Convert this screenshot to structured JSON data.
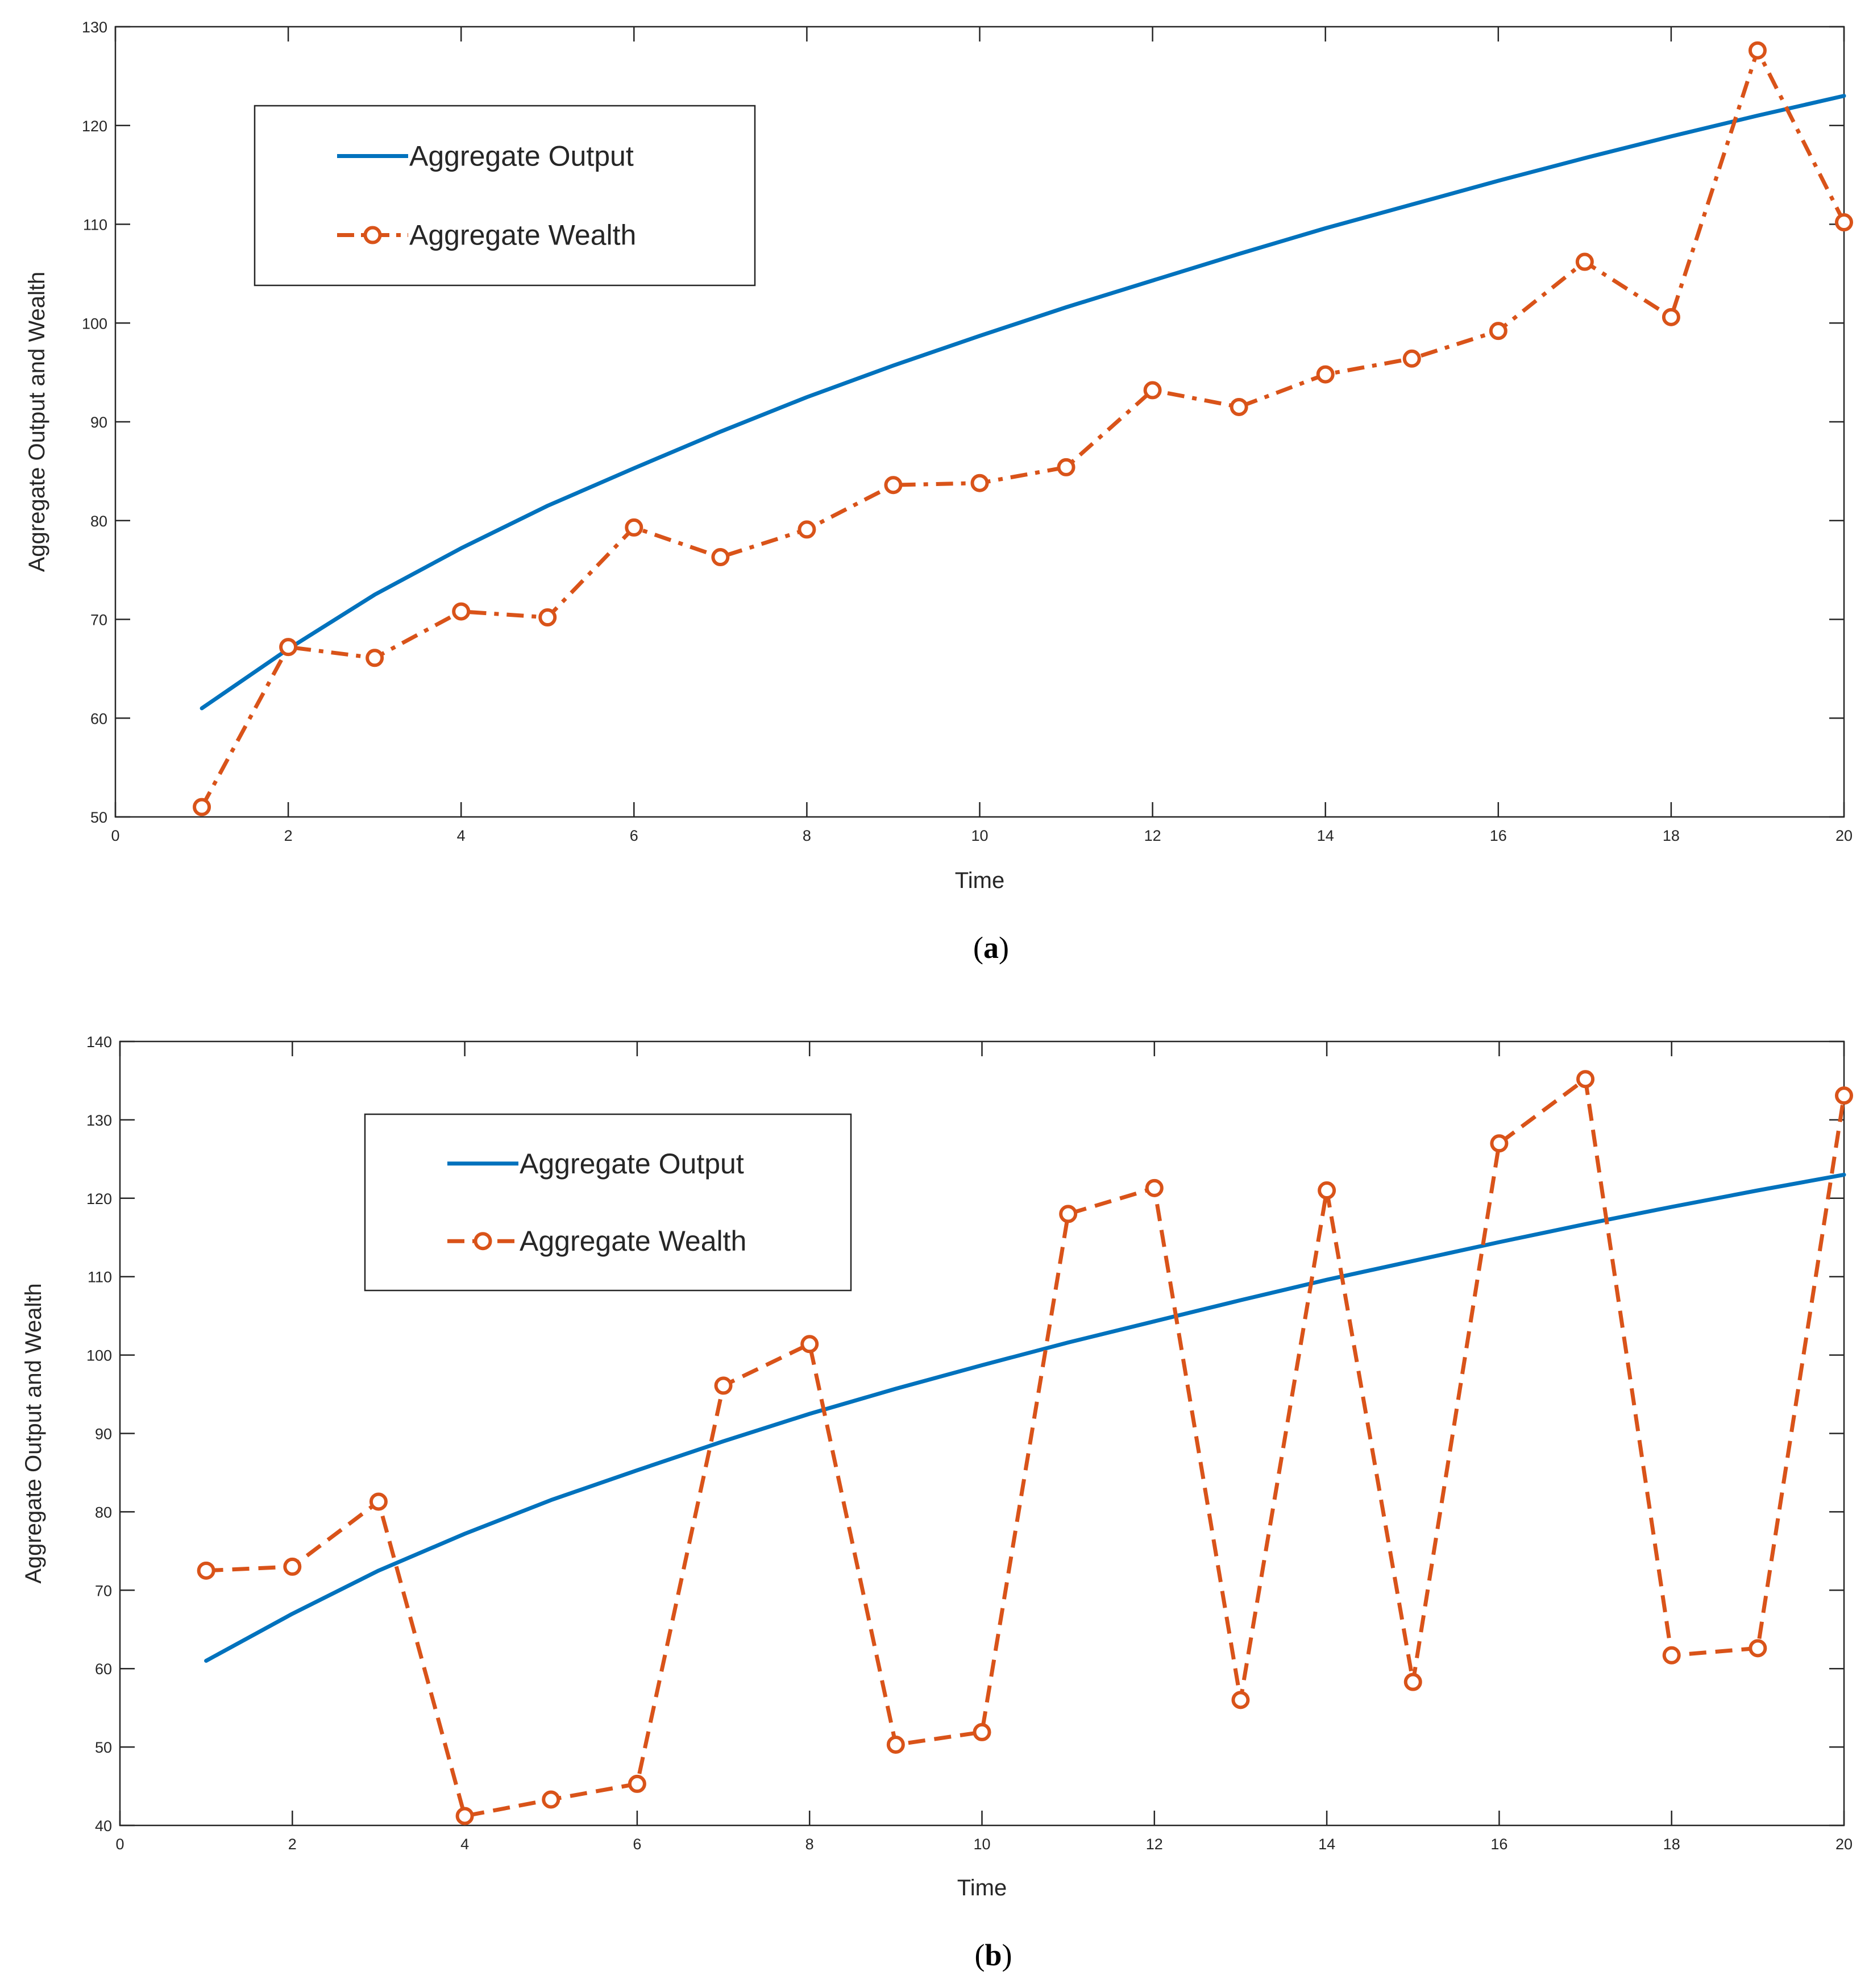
{
  "colors": {
    "output": "#0072BD",
    "wealth": "#D95319",
    "axis": "#262626",
    "background": "#ffffff"
  },
  "chart_data": [
    {
      "id": "a",
      "type": "line",
      "caption": {
        "open": "(",
        "letter": "a",
        "close": ")"
      },
      "xlabel": "Time",
      "ylabel": "Aggregate Output and Wealth",
      "xlim": [
        0,
        20
      ],
      "ylim": [
        50,
        130
      ],
      "xticks": [
        "0",
        "2",
        "4",
        "6",
        "8",
        "10",
        "12",
        "14",
        "16",
        "18",
        "20"
      ],
      "yticks": [
        "50",
        "60",
        "70",
        "80",
        "90",
        "100",
        "110",
        "120",
        "130"
      ],
      "grid": false,
      "legend_position": "top-left",
      "series": [
        {
          "name": "Aggregate Output",
          "style": "solid",
          "x": [
            1,
            2,
            3,
            4,
            5,
            6,
            7,
            8,
            9,
            10,
            11,
            12,
            13,
            14,
            15,
            16,
            17,
            18,
            19,
            20
          ],
          "y": [
            61,
            67,
            72.5,
            77.2,
            81.5,
            85.3,
            89,
            92.5,
            95.7,
            98.7,
            101.6,
            104.3,
            107,
            109.6,
            112,
            114.4,
            116.7,
            118.9,
            121,
            123
          ]
        },
        {
          "name": "Aggregate Wealth",
          "style": "dash-dot-markers",
          "x": [
            1,
            2,
            3,
            4,
            5,
            6,
            7,
            8,
            9,
            10,
            11,
            12,
            13,
            14,
            15,
            16,
            17,
            18,
            19,
            20
          ],
          "y": [
            51,
            67.2,
            66.1,
            70.8,
            70.2,
            79.3,
            76.3,
            79.1,
            83.6,
            83.8,
            85.4,
            93.2,
            91.5,
            94.8,
            96.4,
            99.2,
            106.2,
            100.6,
            127.6,
            110.2
          ]
        }
      ]
    },
    {
      "id": "b",
      "type": "line",
      "caption": {
        "open": "(",
        "letter": "b",
        "close": ")"
      },
      "xlabel": "Time",
      "ylabel": "Aggregate Output and Wealth",
      "xlim": [
        0,
        20
      ],
      "ylim": [
        40,
        140
      ],
      "xticks": [
        "0",
        "2",
        "4",
        "6",
        "8",
        "10",
        "12",
        "14",
        "16",
        "18",
        "20"
      ],
      "yticks": [
        "40",
        "50",
        "60",
        "70",
        "80",
        "90",
        "100",
        "110",
        "120",
        "130",
        "140"
      ],
      "grid": false,
      "legend_position": "top-left",
      "series": [
        {
          "name": "Aggregate Output",
          "style": "solid",
          "x": [
            1,
            2,
            3,
            4,
            5,
            6,
            7,
            8,
            9,
            10,
            11,
            12,
            13,
            14,
            15,
            16,
            17,
            18,
            19,
            20
          ],
          "y": [
            61,
            67,
            72.5,
            77.2,
            81.5,
            85.3,
            89,
            92.5,
            95.7,
            98.7,
            101.6,
            104.3,
            107,
            109.6,
            112,
            114.4,
            116.7,
            118.9,
            121,
            123
          ]
        },
        {
          "name": "Aggregate Wealth",
          "style": "dashed-markers",
          "x": [
            1,
            2,
            3,
            4,
            5,
            6,
            7,
            8,
            9,
            10,
            11,
            12,
            13,
            14,
            15,
            16,
            17,
            18,
            19,
            20
          ],
          "y": [
            72.5,
            73,
            81.3,
            41.2,
            43.3,
            45.3,
            96.1,
            101.4,
            50.3,
            51.9,
            118,
            121.3,
            56,
            121,
            58.3,
            127,
            135.2,
            61.7,
            62.6,
            133.1
          ]
        }
      ]
    }
  ]
}
